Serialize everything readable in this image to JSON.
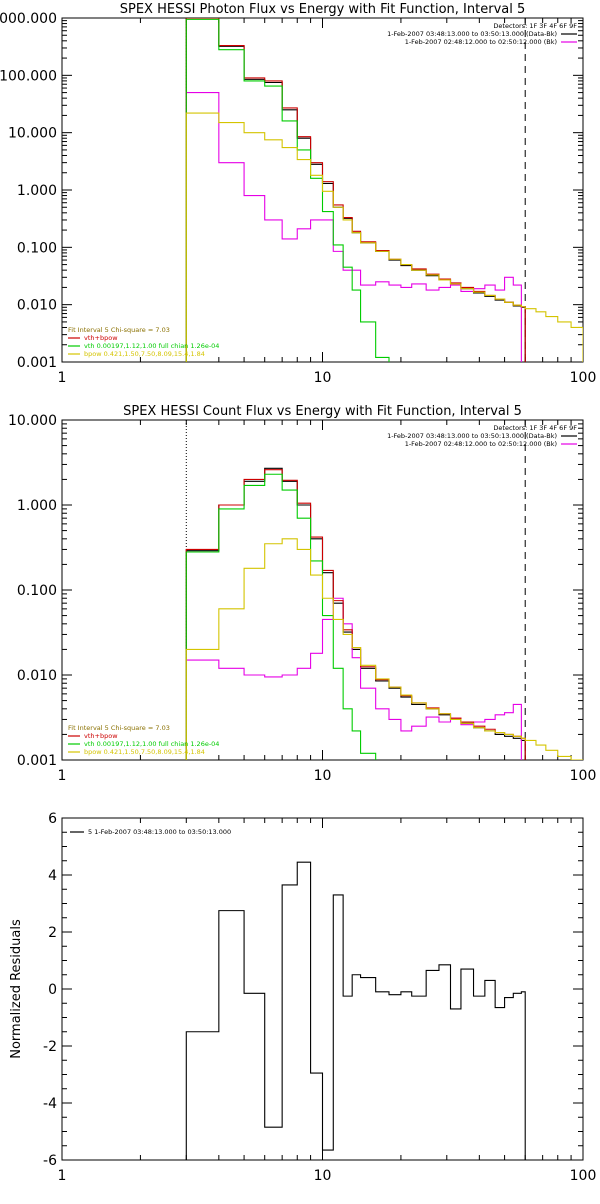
{
  "colors": {
    "data": "#000000",
    "background": "#000000",
    "total": "#cc0000",
    "vth": "#00cc00",
    "bpow": "#d4c400",
    "fit_interval": "#8a7000",
    "mag": "#e600e6"
  },
  "chart_data": [
    {
      "type": "line",
      "panel": "photon",
      "title": "SPEX HESSI Photon Flux vs Energy with Fit Function, Interval 5",
      "xlabel": "",
      "ylabel": "",
      "xscale": "log",
      "yscale": "log",
      "xlim": [
        1,
        100
      ],
      "ylim": [
        0.001,
        1000
      ],
      "xticks": [
        1,
        10,
        100
      ],
      "xtick_labels": [
        "1",
        "10",
        "100"
      ],
      "yticks": [
        0.001,
        0.01,
        0.1,
        1,
        10,
        100,
        1000
      ],
      "ytick_labels": [
        "0.001",
        "0.010",
        "0.100",
        "1.000",
        "10.000",
        "100.000",
        "1000.000"
      ],
      "vlines": [
        {
          "x": 3,
          "style": "dotted"
        },
        {
          "x": 60,
          "style": "dashed"
        }
      ],
      "bin_edges": [
        3,
        4,
        5,
        6,
        7,
        8,
        9,
        10,
        11,
        12,
        13,
        14,
        16,
        18,
        20,
        22,
        25,
        28,
        31,
        34,
        38,
        42,
        46,
        50,
        54,
        58,
        60,
        66,
        72,
        80,
        90,
        100
      ],
      "legend_top_right": [
        {
          "text": "Detectors: 1F 3F 4F 6F 9F",
          "color_key": ""
        },
        {
          "text": "1-Feb-2007 03:48:13.000 to 03:50:13.000 (Data-Bk)",
          "color_key": "data"
        },
        {
          "text": "1-Feb-2007 02:48:12.000 to 02:50:12.000 (Bk)",
          "color_key": "mag"
        }
      ],
      "legend_bottom_left": [
        {
          "text": "Fit Interval 5   Chi-square = 7.03",
          "color_key": "fit_interval"
        },
        {
          "text": "vth+bpow",
          "color_key": "total"
        },
        {
          "text": "vth 0.00197,1.12,1.00  full chian 1.26e-04",
          "color_key": "vth"
        },
        {
          "text": "bpow 0.421,1.50,7.50,8.09,15.4,1.84",
          "color_key": "bpow"
        }
      ],
      "series": [
        {
          "name": "1-Feb-2007 03:48:13.000 to 03:50:13.000 (Data-Bk)",
          "color_key": "data",
          "values": [
            1000,
            320,
            85,
            75,
            25,
            8,
            2.8,
            1.3,
            0.5,
            0.32,
            0.18,
            0.12,
            0.085,
            0.06,
            0.048,
            0.04,
            0.032,
            0.027,
            0.023,
            0.019,
            0.016,
            0.014,
            0.012,
            0.011,
            0.0095,
            0.009
          ]
        },
        {
          "name": "1-Feb-2007 02:48:12.000 to 02:50:12.000 (Bk)",
          "color_key": "mag",
          "values": [
            50,
            3,
            0.8,
            0.3,
            0.14,
            0.21,
            0.3,
            0.3,
            0.085,
            0.04,
            0.04,
            0.022,
            0.025,
            0.022,
            0.02,
            0.023,
            0.018,
            0.02,
            0.022,
            0.017,
            0.019,
            0.022,
            0.018,
            0.03,
            0.022,
            0.0009
          ]
        },
        {
          "name": "vth+bpow",
          "color_key": "total",
          "values": [
            1000,
            330,
            90,
            80,
            27,
            8.5,
            3,
            1.4,
            0.55,
            0.33,
            0.19,
            0.125,
            0.088,
            0.062,
            0.05,
            0.042,
            0.034,
            0.028,
            0.024,
            0.02,
            0.017,
            0.0145,
            0.0125,
            0.011,
            0.0098,
            0.0092
          ]
        },
        {
          "name": "vth 0.00197,1.12,1.00  full chian 1.26e-04",
          "color_key": "vth",
          "values": [
            950,
            280,
            80,
            65,
            16,
            5,
            1.6,
            0.42,
            0.11,
            0.045,
            0.018,
            0.005,
            0.0012
          ]
        },
        {
          "name": "bpow 0.421,1.50,7.50,8.09,15.4,1.84",
          "color_key": "bpow",
          "values": [
            22,
            15,
            10,
            7.5,
            5.5,
            3.4,
            1.8,
            0.95,
            0.5,
            0.3,
            0.18,
            0.12,
            0.085,
            0.062,
            0.05,
            0.04,
            0.033,
            0.027,
            0.023,
            0.019,
            0.0165,
            0.0145,
            0.0125,
            0.011,
            0.0098,
            0.0092,
            0.0085,
            0.0075,
            0.0062,
            0.005,
            0.004
          ]
        }
      ]
    },
    {
      "type": "line",
      "panel": "count",
      "title": "SPEX HESSI Count Flux vs Energy with Fit Function, Interval 5",
      "xlabel": "",
      "ylabel": "",
      "xscale": "log",
      "yscale": "log",
      "xlim": [
        1,
        100
      ],
      "ylim": [
        0.001,
        10
      ],
      "xticks": [
        1,
        10,
        100
      ],
      "xtick_labels": [
        "1",
        "10",
        "100"
      ],
      "yticks": [
        0.001,
        0.01,
        0.1,
        1,
        10
      ],
      "ytick_labels": [
        "0.001",
        "0.010",
        "0.100",
        "1.000",
        "10.000"
      ],
      "vlines": [
        {
          "x": 3,
          "style": "dotted"
        },
        {
          "x": 60,
          "style": "dashed"
        }
      ],
      "bin_edges": [
        3,
        4,
        5,
        6,
        7,
        8,
        9,
        10,
        11,
        12,
        13,
        14,
        16,
        18,
        20,
        22,
        25,
        28,
        31,
        34,
        38,
        42,
        46,
        50,
        54,
        58,
        60,
        66,
        72,
        80,
        90,
        100
      ],
      "legend_top_right": [
        {
          "text": "Detectors: 1F 3F 4F 6F 9F",
          "color_key": ""
        },
        {
          "text": "1-Feb-2007 03:48:13.000 to 03:50:13.000 (Data-Bk)",
          "color_key": "data"
        },
        {
          "text": "1-Feb-2007 02:48:12.000 to 02:50:12.000 (Bk)",
          "color_key": "mag"
        }
      ],
      "legend_bottom_left": [
        {
          "text": "Fit Interval 5   Chi-square = 7.03",
          "color_key": "fit_interval"
        },
        {
          "text": "vth+bpow",
          "color_key": "total"
        },
        {
          "text": "vth 0.00197,1.12,1.00  full chian 1.26e-04",
          "color_key": "vth"
        },
        {
          "text": "bpow 0.421,1.50,7.50,8.09,15.4,1.84",
          "color_key": "bpow"
        }
      ],
      "series": [
        {
          "name": "1-Feb-2007 03:48:13.000 to 03:50:13.000 (Data-Bk)",
          "color_key": "data",
          "values": [
            0.29,
            1,
            1.9,
            2.7,
            1.9,
            1,
            0.4,
            0.16,
            0.07,
            0.032,
            0.02,
            0.012,
            0.0085,
            0.007,
            0.0055,
            0.0045,
            0.004,
            0.0034,
            0.003,
            0.0027,
            0.0024,
            0.0022,
            0.002,
            0.0019,
            0.0018,
            0.0017
          ]
        },
        {
          "name": "1-Feb-2007 02:48:12.000 to 02:50:12.000 (Bk)",
          "color_key": "mag",
          "values": [
            0.015,
            0.012,
            0.01,
            0.0095,
            0.01,
            0.012,
            0.018,
            0.045,
            0.08,
            0.04,
            0.016,
            0.007,
            0.004,
            0.003,
            0.0022,
            0.0025,
            0.0032,
            0.0028,
            0.0031,
            0.0026,
            0.0028,
            0.003,
            0.0034,
            0.0036,
            0.0045,
            0.0009
          ]
        },
        {
          "name": "vth+bpow",
          "color_key": "total",
          "values": [
            0.3,
            1,
            2,
            2.6,
            1.95,
            1.05,
            0.42,
            0.17,
            0.075,
            0.034,
            0.021,
            0.0125,
            0.0088,
            0.0072,
            0.0057,
            0.0047,
            0.0041,
            0.0035,
            0.0031,
            0.0028,
            0.0025,
            0.0023,
            0.0021,
            0.002,
            0.0019,
            0.0018
          ]
        },
        {
          "name": "vth 0.00197,1.12,1.00  full chian 1.26e-04",
          "color_key": "vth",
          "values": [
            0.28,
            0.9,
            1.7,
            2.3,
            1.5,
            0.7,
            0.22,
            0.05,
            0.012,
            0.004,
            0.0022,
            0.0012
          ]
        },
        {
          "name": "bpow 0.421,1.50,7.50,8.09,15.4,1.84",
          "color_key": "bpow",
          "values": [
            0.02,
            0.06,
            0.18,
            0.35,
            0.4,
            0.3,
            0.15,
            0.08,
            0.045,
            0.03,
            0.021,
            0.013,
            0.009,
            0.0072,
            0.0058,
            0.0047,
            0.004,
            0.0035,
            0.003,
            0.0027,
            0.0024,
            0.0022,
            0.0021,
            0.002,
            0.0019,
            0.0018,
            0.0017,
            0.0015,
            0.0013,
            0.0011,
            0.001
          ]
        }
      ]
    },
    {
      "type": "line",
      "panel": "residuals",
      "title": "",
      "xlabel": "",
      "ylabel": "Normalized Residuals",
      "xscale": "log",
      "yscale": "linear",
      "xlim": [
        1,
        100
      ],
      "ylim": [
        -6,
        6
      ],
      "xticks": [
        1,
        10,
        100
      ],
      "xtick_labels": [
        "1",
        "10",
        "100"
      ],
      "yticks": [
        -6,
        -4,
        -2,
        0,
        2,
        4,
        6
      ],
      "ytick_labels": [
        "-6",
        "-4",
        "-2",
        "0",
        "2",
        "4",
        "6"
      ],
      "bin_edges": [
        3,
        4,
        5,
        6,
        7,
        8,
        9,
        10,
        11,
        12,
        13,
        14,
        16,
        18,
        20,
        22,
        25,
        28,
        31,
        34,
        38,
        42,
        46,
        50,
        54,
        58,
        60
      ],
      "legend_top_left": [
        {
          "text": "5  1-Feb-2007 03:48:13.000 to 03:50:13.000",
          "color_key": "data"
        }
      ],
      "series": [
        {
          "name": "5  1-Feb-2007 03:48:13.000 to 03:50:13.000",
          "color_key": "data",
          "values": [
            -1.5,
            2.75,
            -0.15,
            -4.85,
            3.65,
            4.45,
            -2.95,
            -5.65,
            3.3,
            -0.25,
            0.5,
            0.4,
            -0.1,
            -0.2,
            -0.1,
            -0.25,
            0.65,
            0.85,
            -0.7,
            0.7,
            -0.25,
            0.3,
            -0.65,
            -0.3,
            -0.15,
            -0.1
          ]
        }
      ]
    }
  ]
}
